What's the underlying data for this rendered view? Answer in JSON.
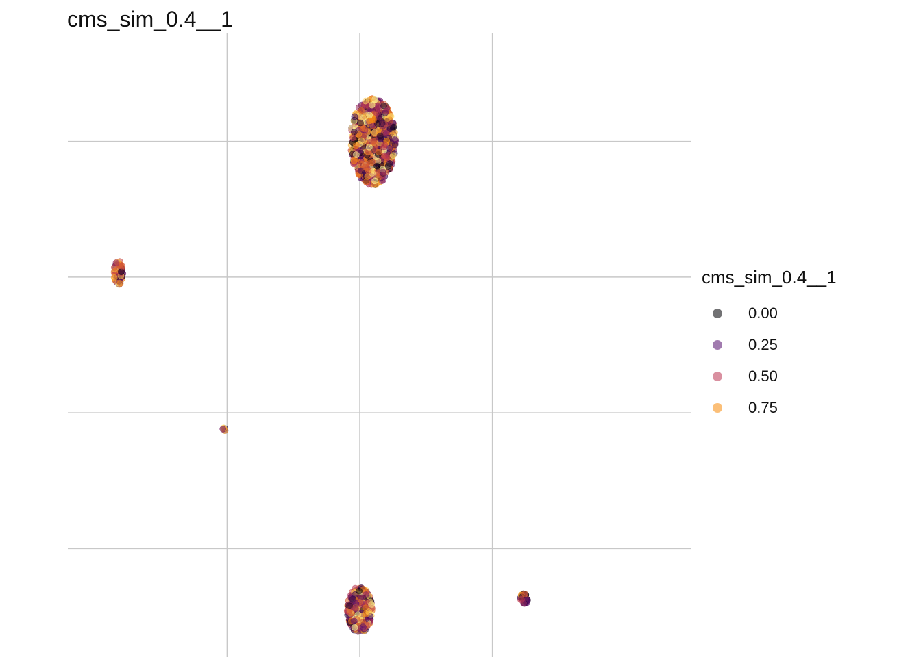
{
  "chart_data": {
    "type": "scatter",
    "title": "cms_sim_0.4__1",
    "xlabel": "",
    "ylabel": "",
    "xlim": [
      -2.2,
      2.5
    ],
    "ylim": [
      -2.3,
      2.3
    ],
    "x_gridlines": [
      -1,
      0,
      1
    ],
    "y_gridlines": [
      -1.5,
      -0.5,
      0.5,
      1.5
    ],
    "grid": true,
    "legend": {
      "title": "cms_sim_0.4__1",
      "position": "right",
      "entries": [
        {
          "label": "0.00",
          "value": 0.0,
          "color": "#000004"
        },
        {
          "label": "0.25",
          "value": 0.25,
          "color": "#56106E"
        },
        {
          "label": "0.50",
          "value": 0.5,
          "color": "#BB3754"
        },
        {
          "label": "0.75",
          "value": 0.75,
          "color": "#F98C0A"
        }
      ]
    },
    "color_scale": [
      "#000004",
      "#56106E",
      "#BB3754",
      "#F98C0A",
      "#FCFFA4"
    ],
    "clusters": [
      {
        "cx": 0.1,
        "cy": 1.5,
        "rx": 0.17,
        "ry": 0.32,
        "n": 900
      },
      {
        "cx": 0.0,
        "cy": -1.95,
        "rx": 0.095,
        "ry": 0.17,
        "n": 330
      },
      {
        "cx": -1.82,
        "cy": 0.53,
        "rx": 0.035,
        "ry": 0.09,
        "n": 80
      },
      {
        "cx": 1.24,
        "cy": -1.87,
        "rx": 0.03,
        "ry": 0.04,
        "n": 35
      },
      {
        "cx": -1.02,
        "cy": -0.62,
        "rx": 0.012,
        "ry": 0.012,
        "n": 6
      }
    ]
  }
}
